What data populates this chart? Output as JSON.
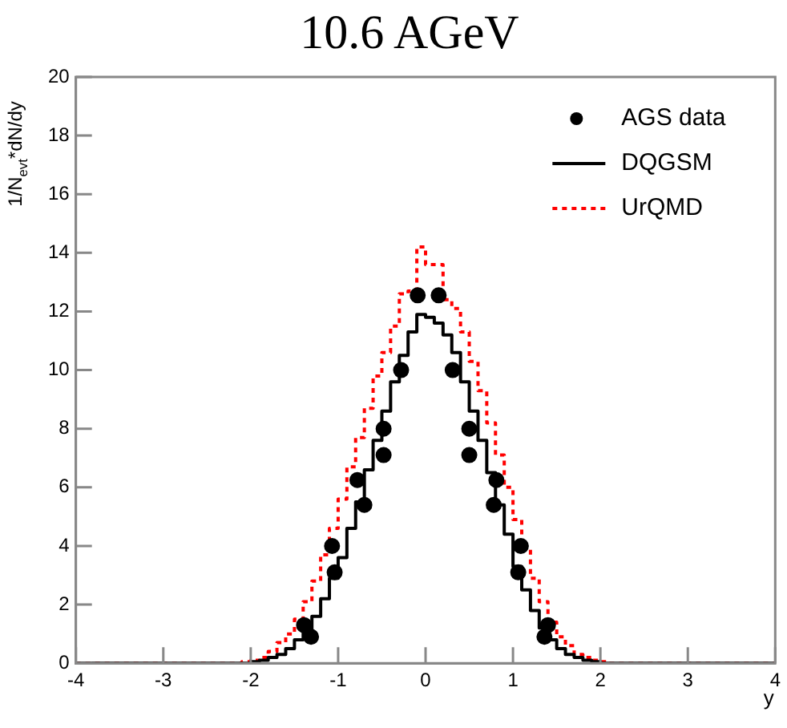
{
  "chart_data": {
    "type": "step",
    "title": "10.6 AGeV",
    "xlabel": "y",
    "ylabel": "1/N$_{evt}$*dN/dy",
    "xlim": [
      -4,
      4
    ],
    "xticks": [
      -4,
      -3,
      -2,
      -1,
      0,
      1,
      2,
      3,
      4
    ],
    "ylim": [
      0,
      20
    ],
    "yticks": [
      0,
      2,
      4,
      6,
      8,
      10,
      12,
      14,
      16,
      18,
      20
    ],
    "grid": false,
    "legend": "top right",
    "series": [
      {
        "name": "AGS data",
        "type": "scatter",
        "marker": "circle",
        "color": "#000000",
        "x": [
          -1.39,
          -1.31,
          -1.07,
          -1.04,
          -0.78,
          -0.7,
          -0.48,
          -0.48,
          -0.28,
          -0.09,
          0.15,
          0.31,
          0.5,
          0.5,
          0.78,
          0.81,
          1.06,
          1.09,
          1.36,
          1.4
        ],
        "values": [
          1.3,
          0.9,
          4.0,
          3.1,
          6.25,
          5.4,
          8.0,
          7.1,
          10.0,
          12.55,
          12.55,
          10.0,
          8.0,
          7.1,
          5.4,
          6.25,
          3.1,
          4.0,
          0.9,
          1.3
        ]
      },
      {
        "name": "DQGSM",
        "line_style": "solid",
        "color": "#000000",
        "x": [
          -4,
          -2.05,
          -1.95,
          -1.85,
          -1.75,
          -1.65,
          -1.55,
          -1.45,
          -1.35,
          -1.25,
          -1.15,
          -1.05,
          -0.95,
          -0.85,
          -0.75,
          -0.65,
          -0.55,
          -0.45,
          -0.35,
          -0.25,
          -0.15,
          -0.05,
          0.05,
          0.15,
          0.25,
          0.35,
          0.45,
          0.55,
          0.65,
          0.75,
          0.85,
          0.95,
          1.05,
          1.15,
          1.25,
          1.35,
          1.45,
          1.55,
          1.65,
          1.75,
          1.85,
          1.95,
          2.05,
          4
        ],
        "values": [
          0,
          0,
          0.05,
          0.1,
          0.2,
          0.3,
          0.5,
          0.8,
          1.1,
          1.6,
          2.2,
          2.9,
          3.6,
          4.6,
          5.5,
          6.6,
          7.6,
          8.6,
          9.6,
          10.5,
          11.3,
          11.9,
          11.8,
          11.6,
          11.2,
          10.6,
          9.6,
          8.6,
          7.6,
          6.5,
          5.4,
          4.4,
          3.3,
          2.5,
          1.8,
          1.2,
          0.8,
          0.5,
          0.3,
          0.2,
          0.1,
          0.05,
          0,
          0
        ]
      },
      {
        "name": "UrQMD",
        "line_style": "dotted",
        "color": "#ff0000",
        "x": [
          -4,
          -2.15,
          -2.05,
          -1.95,
          -1.85,
          -1.75,
          -1.65,
          -1.55,
          -1.45,
          -1.35,
          -1.25,
          -1.15,
          -1.05,
          -0.95,
          -0.85,
          -0.75,
          -0.65,
          -0.55,
          -0.45,
          -0.35,
          -0.25,
          -0.15,
          -0.05,
          0.05,
          0.15,
          0.25,
          0.35,
          0.45,
          0.55,
          0.65,
          0.75,
          0.85,
          0.95,
          1.05,
          1.15,
          1.25,
          1.35,
          1.45,
          1.55,
          1.65,
          1.75,
          1.85,
          1.95,
          2.05,
          2.15,
          4
        ],
        "values": [
          0,
          0,
          0.05,
          0.1,
          0.2,
          0.4,
          0.7,
          1.0,
          1.5,
          2.1,
          2.8,
          3.7,
          4.6,
          5.6,
          6.7,
          7.7,
          8.7,
          9.8,
          10.6,
          11.5,
          12.6,
          12.7,
          14.2,
          13.6,
          13.6,
          12.4,
          12.1,
          11.3,
          10.3,
          9.3,
          8.2,
          7.1,
          6.0,
          4.9,
          3.9,
          2.9,
          2.1,
          1.4,
          0.9,
          0.6,
          0.3,
          0.2,
          0.1,
          0.05,
          0,
          0
        ]
      }
    ]
  }
}
